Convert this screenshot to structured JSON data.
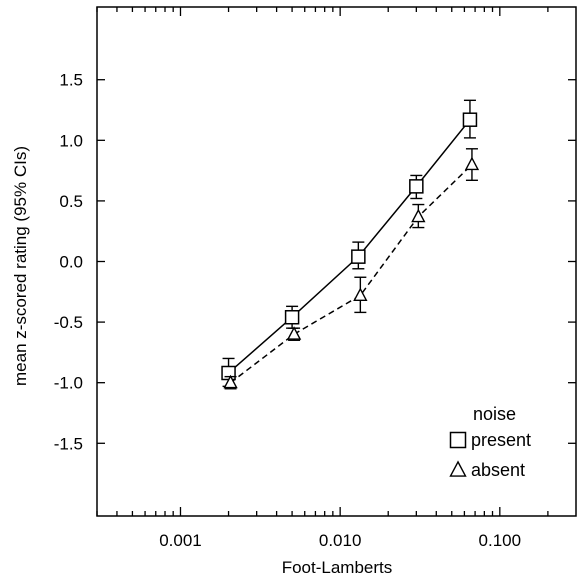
{
  "chart_data": {
    "type": "line",
    "xscale": "log",
    "xlim": [
      0.0003,
      0.3
    ],
    "ylim": [
      -2.1,
      2.1
    ],
    "xticks": [
      0.001,
      0.01,
      0.1
    ],
    "xtick_labels": [
      "0.001",
      "0.010",
      "0.100"
    ],
    "yticks": [
      -1.5,
      -1.0,
      -0.5,
      0.0,
      0.5,
      1.0,
      1.5
    ],
    "ytick_labels": [
      "-1.5",
      "-1.0",
      "-0.5",
      "0.0",
      "0.5",
      "1.0",
      "1.5"
    ],
    "xlabel": "Foot-Lamberts",
    "ylabel": "mean z-scored rating (95% CIs)",
    "legend": {
      "title": "noise",
      "position": "bottom-right"
    },
    "grid": false,
    "series": [
      {
        "name": "present",
        "marker": "square",
        "line_style": "solid",
        "x": [
          0.002,
          0.005,
          0.013,
          0.03,
          0.065
        ],
        "y": [
          -0.92,
          -0.46,
          0.04,
          0.62,
          1.17
        ],
        "ci_low": [
          -1.03,
          -0.55,
          -0.06,
          0.52,
          1.02
        ],
        "ci_high": [
          -0.8,
          -0.37,
          0.16,
          0.71,
          1.33
        ]
      },
      {
        "name": "absent",
        "marker": "triangle",
        "line_style": "dashed",
        "x": [
          0.002,
          0.005,
          0.013,
          0.03,
          0.065
        ],
        "y": [
          -1.0,
          -0.6,
          -0.28,
          0.37,
          0.8
        ],
        "ci_low": [
          -1.05,
          -0.65,
          -0.42,
          0.28,
          0.67
        ],
        "ci_high": [
          -0.95,
          -0.55,
          -0.13,
          0.47,
          0.93
        ]
      }
    ]
  }
}
